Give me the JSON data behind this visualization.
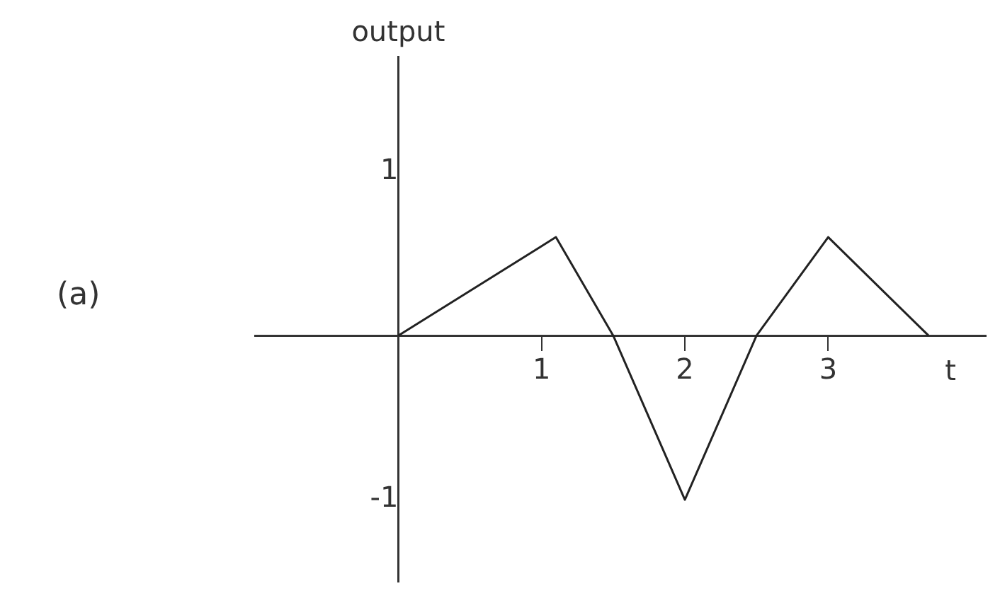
{
  "chart_data": {
    "type": "line",
    "xlabel": "t",
    "ylabel": "output",
    "annotations": [
      "(a)"
    ],
    "x": [
      0,
      1.1,
      1.5,
      2,
      2.5,
      3,
      3.7
    ],
    "series": [
      {
        "color": "#222222",
        "values": [
          0,
          0.6,
          0,
          -1,
          0,
          0.6,
          0
        ]
      }
    ],
    "xlim": [
      -1,
      4.1
    ],
    "xticks": [
      1,
      2,
      3
    ],
    "ylim": [
      -1.5,
      1.7
    ],
    "yticks": [
      -1,
      1
    ],
    "grid": false,
    "legend": false,
    "marker": "none",
    "line_style": "solid"
  }
}
